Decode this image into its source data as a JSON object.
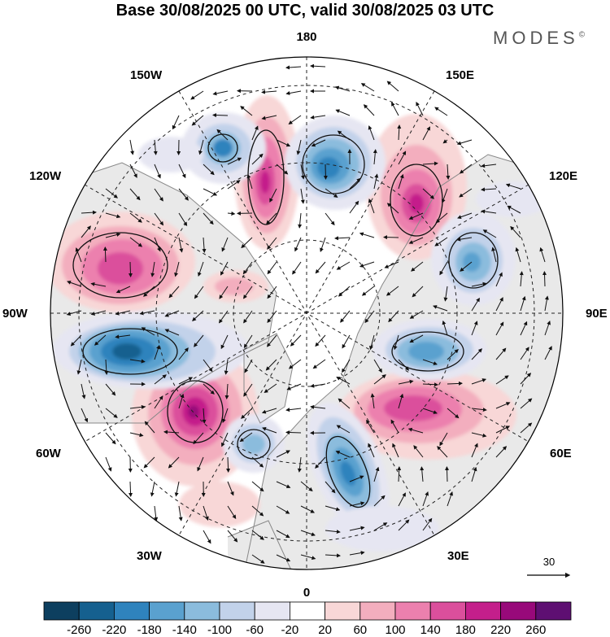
{
  "header": {
    "title": "Base 30/08/2025 00 UTC, valid 30/08/2025 03 UTC",
    "brand": "MODES",
    "brand_mark": "©"
  },
  "map": {
    "projection": "north-polar-stereographic",
    "longitude_labels": {
      "top": "180",
      "bottom": "0",
      "left": "90W",
      "right": "90E",
      "upper_left_1": "150W",
      "upper_left_2": "120W",
      "upper_right_1": "150E",
      "upper_right_2": "120E",
      "lower_left_1": "60W",
      "lower_left_2": "30W",
      "lower_right_1": "60E",
      "lower_right_2": "30E"
    },
    "reference_vector": {
      "label": "30"
    }
  },
  "colorbar": {
    "labels": [
      "-260",
      "-220",
      "-180",
      "-140",
      "-100",
      "-60",
      "-20",
      "20",
      "60",
      "100",
      "140",
      "180",
      "220",
      "260"
    ],
    "colors": [
      "#0d3f5f",
      "#15608f",
      "#2f83bd",
      "#5aa1cf",
      "#8bbcdd",
      "#c2d2ea",
      "#e6e6f2",
      "#ffffff",
      "#f8d7d7",
      "#f3aebe",
      "#ec80ae",
      "#db4f9c",
      "#c41f8b",
      "#98097a",
      "#5e0f72"
    ]
  },
  "colors": {
    "land_gray": "#e9e9e9",
    "coast": "#888888"
  }
}
